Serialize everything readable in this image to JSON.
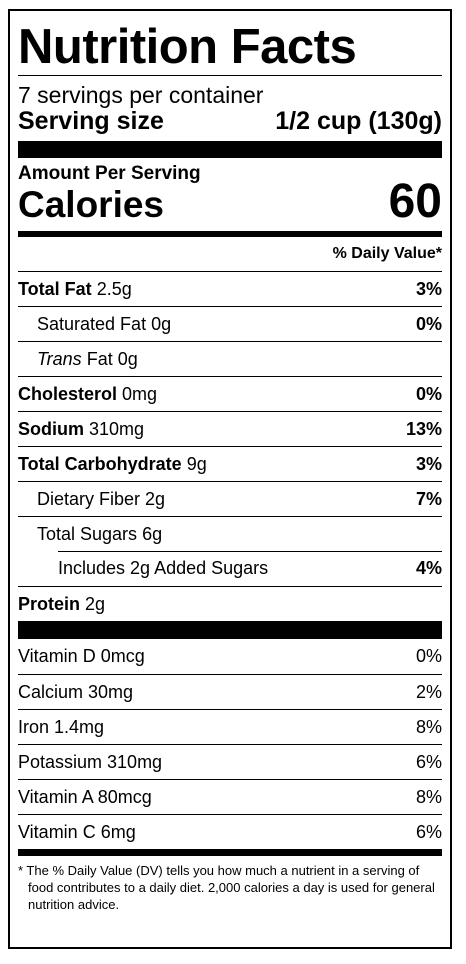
{
  "title": "Nutrition Facts",
  "servings_per_container": "7 servings per container",
  "serving_size_label": "Serving size",
  "serving_size_value": "1/2 cup (130g)",
  "amount_per_serving": "Amount Per Serving",
  "calories_label": "Calories",
  "calories_value": "60",
  "dv_header": "% Daily Value*",
  "nutrients": {
    "total_fat": {
      "name": "Total Fat",
      "amount": "2.5g",
      "dv": "3%"
    },
    "saturated_fat": {
      "name": "Saturated Fat",
      "amount": "0g",
      "dv": "0%"
    },
    "trans_fat": {
      "name": "Trans",
      "suffix": "Fat",
      "amount": "0g"
    },
    "cholesterol": {
      "name": "Cholesterol",
      "amount": "0mg",
      "dv": "0%"
    },
    "sodium": {
      "name": "Sodium",
      "amount": "310mg",
      "dv": "13%"
    },
    "total_carb": {
      "name": "Total Carbohydrate",
      "amount": "9g",
      "dv": "3%"
    },
    "dietary_fiber": {
      "name": "Dietary Fiber",
      "amount": "2g",
      "dv": "7%"
    },
    "total_sugars": {
      "name": "Total Sugars",
      "amount": "6g"
    },
    "added_sugars": {
      "text": "Includes 2g Added Sugars",
      "dv": "4%"
    },
    "protein": {
      "name": "Protein",
      "amount": "2g"
    }
  },
  "vitamins": [
    {
      "name": "Vitamin D 0mcg",
      "dv": "0%"
    },
    {
      "name": "Calcium 30mg",
      "dv": "2%"
    },
    {
      "name": "Iron 1.4mg",
      "dv": "8%"
    },
    {
      "name": "Potassium 310mg",
      "dv": "6%"
    },
    {
      "name": "Vitamin A 80mcg",
      "dv": "8%"
    },
    {
      "name": "Vitamin C 6mg",
      "dv": "6%"
    }
  ],
  "footnote": "* The % Daily Value (DV) tells you how much a nutrient in a serving of food contributes to a daily diet. 2,000 calories a day is used for general nutrition advice."
}
